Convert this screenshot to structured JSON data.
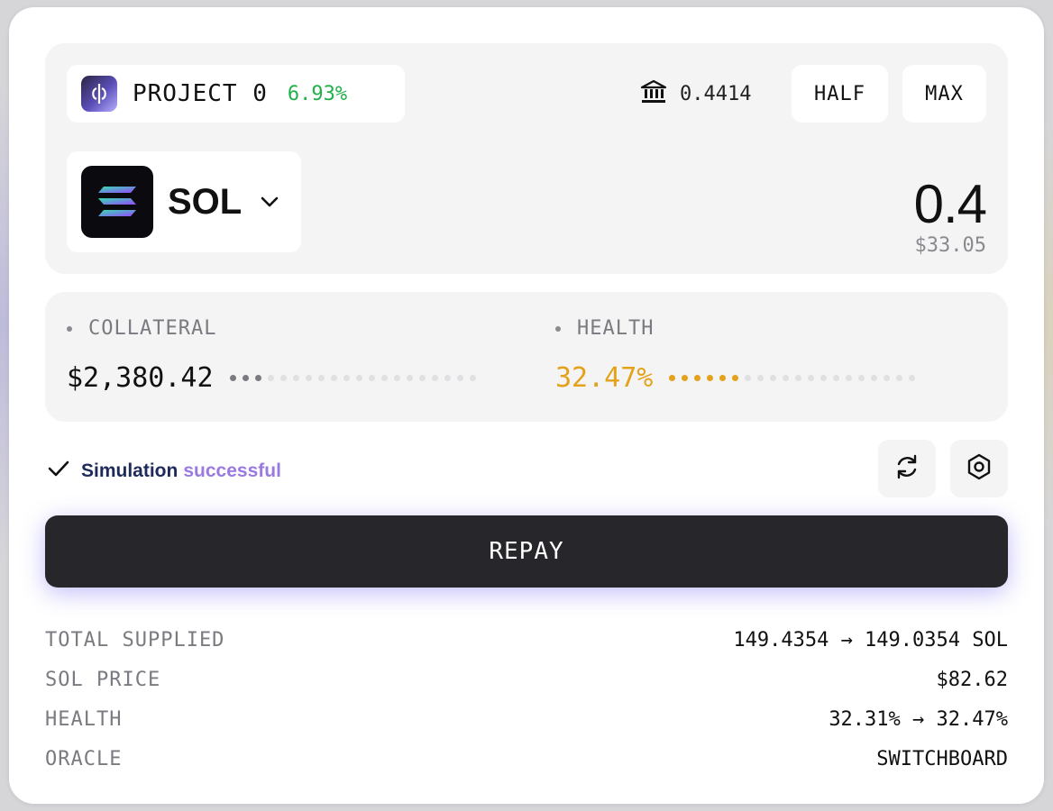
{
  "project": {
    "name": "PROJECT 0",
    "apy": "6.93%"
  },
  "wallet": {
    "balance": "0.4414",
    "half_label": "HALF",
    "max_label": "MAX"
  },
  "token": {
    "symbol": "SOL",
    "amount": "0.4",
    "amount_usd": "$33.05"
  },
  "stats": {
    "collateral": {
      "label": "COLLATERAL",
      "value": "$2,380.42",
      "fill": 0.125
    },
    "health": {
      "label": "HEALTH",
      "value": "32.47%",
      "fill": 0.3
    }
  },
  "simulation": {
    "status_prefix": "Simulation",
    "status_word": "successful"
  },
  "action": {
    "label": "REPAY"
  },
  "summary": [
    {
      "label": "TOTAL SUPPLIED",
      "value": "149.4354 → 149.0354 SOL"
    },
    {
      "label": "SOL PRICE",
      "value": "$82.62"
    },
    {
      "label": "HEALTH",
      "value": "32.31% → 32.47%"
    },
    {
      "label": "ORACLE",
      "value": "SWITCHBOARD"
    }
  ],
  "colors": {
    "positive": "#22b04a",
    "health": "#e3a21a",
    "button": "#27262b",
    "accent_purple": "#9a7ae0"
  },
  "icons": [
    "project-logo-icon",
    "bank-icon",
    "sol-logo-icon",
    "chevron-down-icon",
    "check-icon",
    "refresh-icon",
    "settings-hex-icon"
  ]
}
